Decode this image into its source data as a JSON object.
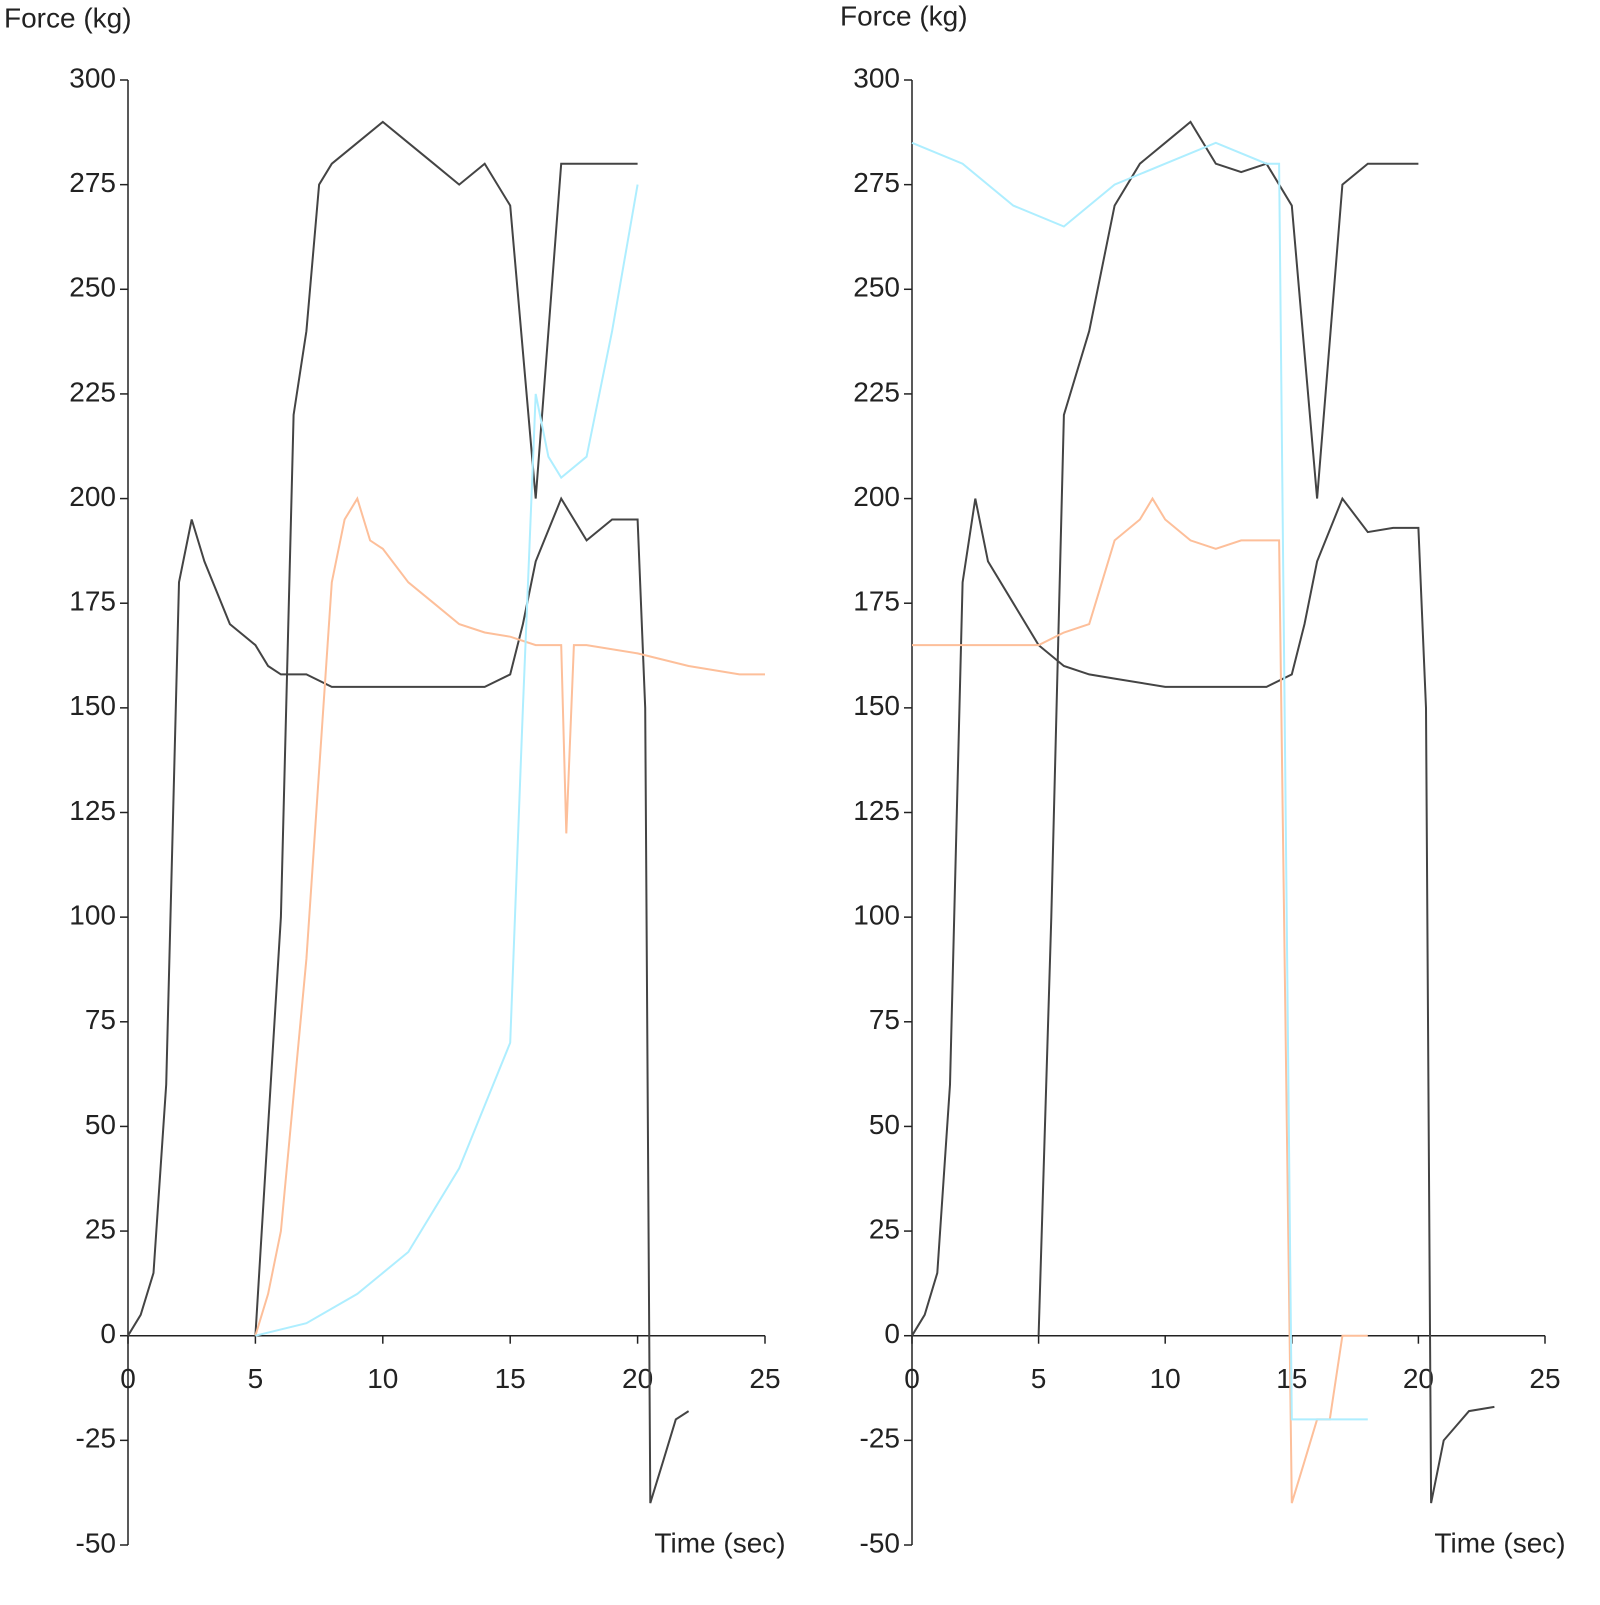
{
  "chart_data": [
    {
      "type": "line",
      "title": "Force (kg)",
      "x_label": "Time (sec)",
      "xlim": [
        0,
        25
      ],
      "xticks": [
        0,
        5,
        10,
        15,
        20,
        25
      ],
      "ylim": [
        -50,
        300
      ],
      "yticks": [
        -50,
        -25,
        0,
        25,
        50,
        75,
        100,
        125,
        150,
        175,
        200,
        225,
        250,
        275,
        300
      ],
      "grid": false,
      "series": [
        {
          "color": "#444444",
          "x": [
            0,
            0.5,
            1,
            1.5,
            2,
            2.5,
            3,
            4,
            5,
            5.5,
            6,
            7,
            8,
            9,
            10,
            11,
            12,
            13,
            14,
            15,
            15.5,
            16,
            17,
            18,
            19,
            20,
            20.3,
            20.5,
            21,
            21.5,
            22
          ],
          "values": [
            0,
            5,
            15,
            60,
            180,
            195,
            185,
            170,
            165,
            160,
            158,
            158,
            155,
            155,
            155,
            155,
            155,
            155,
            155,
            158,
            170,
            185,
            200,
            190,
            195,
            195,
            150,
            -40,
            -30,
            -20,
            -18
          ]
        },
        {
          "color": "#444444",
          "x": [
            5,
            5.5,
            6,
            6.5,
            7,
            7.5,
            8,
            9,
            10,
            11,
            12,
            13,
            14,
            15,
            16,
            17,
            18,
            19,
            20
          ],
          "values": [
            0,
            50,
            100,
            220,
            240,
            275,
            280,
            285,
            290,
            285,
            280,
            275,
            280,
            270,
            200,
            280,
            280,
            280,
            280
          ]
        },
        {
          "color": "#fdbf9a",
          "x": [
            5,
            5.5,
            6,
            7,
            8,
            8.5,
            9,
            9.5,
            10,
            11,
            12,
            13,
            14,
            15,
            16,
            17,
            17.2,
            17.5,
            18,
            20,
            22,
            24,
            25
          ],
          "values": [
            0,
            10,
            25,
            90,
            180,
            195,
            200,
            190,
            188,
            180,
            175,
            170,
            168,
            167,
            165,
            165,
            120,
            165,
            165,
            163,
            160,
            158,
            158
          ]
        },
        {
          "color": "#aeeeff",
          "x": [
            5,
            7,
            9,
            11,
            13,
            14,
            15,
            15.5,
            16,
            16.5,
            17,
            18,
            19,
            20
          ],
          "values": [
            0,
            3,
            10,
            20,
            40,
            55,
            70,
            150,
            225,
            210,
            205,
            210,
            240,
            275
          ]
        }
      ]
    },
    {
      "type": "line",
      "title": "Force (kg)",
      "x_label": "Time (sec)",
      "xlim": [
        0,
        25
      ],
      "xticks": [
        0,
        5,
        10,
        15,
        20,
        25
      ],
      "ylim": [
        -50,
        300
      ],
      "yticks": [
        -50,
        -25,
        0,
        25,
        50,
        75,
        100,
        125,
        150,
        175,
        200,
        225,
        250,
        275,
        300
      ],
      "grid": false,
      "series": [
        {
          "color": "#444444",
          "x": [
            0,
            0.5,
            1,
            1.5,
            2,
            2.5,
            3,
            4,
            5,
            6,
            7,
            8,
            10,
            12,
            14,
            15,
            15.5,
            16,
            17,
            18,
            19,
            20,
            20.3,
            20.5,
            21,
            22,
            23
          ],
          "values": [
            0,
            5,
            15,
            60,
            180,
            200,
            185,
            175,
            165,
            160,
            158,
            157,
            155,
            155,
            155,
            158,
            170,
            185,
            200,
            192,
            193,
            193,
            150,
            -40,
            -25,
            -18,
            -17
          ]
        },
        {
          "color": "#444444",
          "x": [
            5,
            5.5,
            6,
            7,
            8,
            9,
            10,
            11,
            12,
            13,
            14,
            15,
            16,
            17,
            18,
            19,
            20
          ],
          "values": [
            0,
            100,
            220,
            240,
            270,
            280,
            285,
            290,
            280,
            278,
            280,
            270,
            200,
            275,
            280,
            280,
            280
          ]
        },
        {
          "color": "#fdbf9a",
          "x": [
            0,
            5,
            6,
            7,
            7.5,
            8,
            9,
            9.5,
            10,
            11,
            12,
            13,
            14,
            14.5,
            15,
            15.5,
            16,
            16.5,
            17,
            18
          ],
          "values": [
            165,
            165,
            168,
            170,
            180,
            190,
            195,
            200,
            195,
            190,
            188,
            190,
            190,
            190,
            -40,
            -30,
            -20,
            -20,
            0,
            0
          ]
        },
        {
          "color": "#aeeeff",
          "x": [
            0,
            2,
            4,
            6,
            8,
            10,
            12,
            14,
            14.5,
            15,
            16,
            17,
            18
          ],
          "values": [
            285,
            280,
            270,
            265,
            275,
            280,
            285,
            280,
            280,
            -20,
            -20,
            -20,
            -20
          ]
        }
      ]
    }
  ]
}
